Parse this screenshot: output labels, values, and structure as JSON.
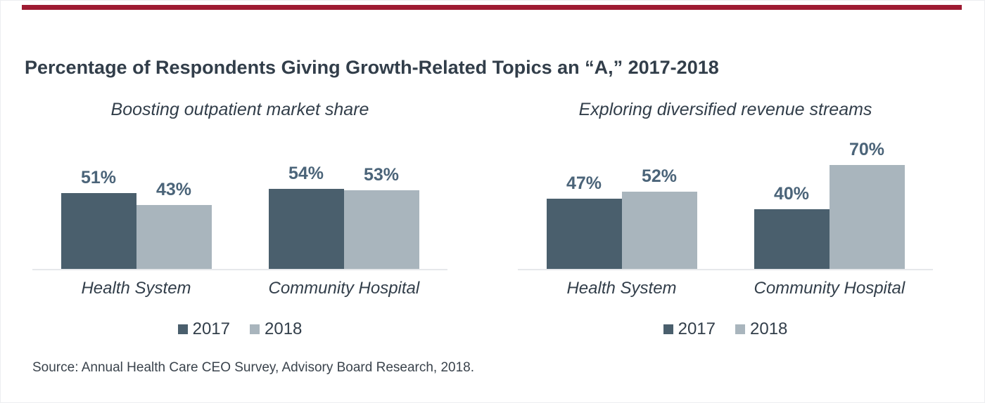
{
  "page": {
    "title": "Percentage of Respondents Giving Growth-Related Topics an “A,” 2017-2018",
    "source": "Source: Annual Health Care CEO Survey, Advisory Board Research, 2018."
  },
  "colors": {
    "accent": "#9e1b32",
    "series": [
      "#4a5f6d",
      "#a9b5bd"
    ],
    "value_label": "#4b6479",
    "text_dark": "#323e4a",
    "axis_line": "#e6e8eb"
  },
  "legend": {
    "items": [
      {
        "label": "2017",
        "color": "#4a5f6d"
      },
      {
        "label": "2018",
        "color": "#a9b5bd"
      }
    ]
  },
  "chart_data": [
    {
      "type": "bar",
      "title": "Boosting outpatient market share",
      "categories": [
        "Health System",
        "Community Hospital"
      ],
      "series": [
        {
          "name": "2017",
          "values": [
            51,
            54
          ]
        },
        {
          "name": "2018",
          "values": [
            43,
            53
          ]
        }
      ],
      "unit": "%",
      "ylim": [
        0,
        80
      ],
      "grid": false,
      "legend_position": "bottom",
      "value_labels": "above-bars"
    },
    {
      "type": "bar",
      "title": "Exploring diversified revenue streams",
      "categories": [
        "Health System",
        "Community Hospital"
      ],
      "series": [
        {
          "name": "2017",
          "values": [
            47,
            40
          ]
        },
        {
          "name": "2018",
          "values": [
            52,
            70
          ]
        }
      ],
      "unit": "%",
      "ylim": [
        0,
        80
      ],
      "grid": false,
      "legend_position": "bottom",
      "value_labels": "above-bars"
    }
  ]
}
